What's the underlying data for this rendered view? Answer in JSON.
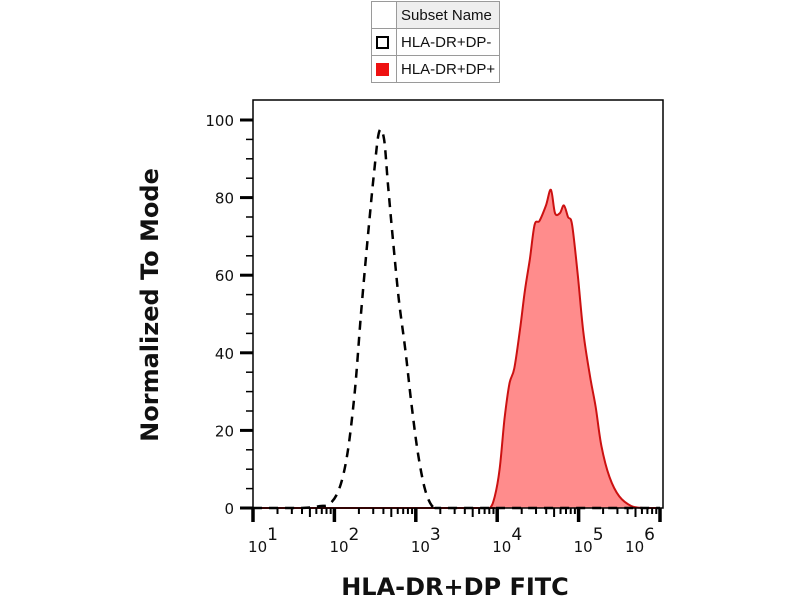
{
  "chart_data": {
    "type": "area",
    "title": "",
    "xlabel": "HLA-DR+DP FITC",
    "ylabel": "Normalized To Mode",
    "x_scale": "log",
    "xlim_log10": [
      1,
      6
    ],
    "ylim": [
      0,
      100
    ],
    "x_ticks": [
      {
        "base": "10",
        "exp": "1",
        "value": 10
      },
      {
        "base": "10",
        "exp": "2",
        "value": 100
      },
      {
        "base": "10",
        "exp": "3",
        "value": 1000
      },
      {
        "base": "10",
        "exp": "4",
        "value": 10000
      },
      {
        "base": "10",
        "exp": "5",
        "value": 100000
      },
      {
        "base": "10",
        "exp": "6",
        "value": 1000000
      }
    ],
    "y_ticks": [
      "0",
      "20",
      "40",
      "60",
      "80",
      "100"
    ],
    "y_tick_values": [
      0,
      20,
      40,
      60,
      80,
      100
    ],
    "grid": false,
    "legend": {
      "placement": "top-center",
      "header": "Subset Name",
      "entries": [
        {
          "label": "HLA-DR+DP-",
          "style": "dashed-outline",
          "color": "#000000"
        },
        {
          "label": "HLA-DR+DP+",
          "style": "filled",
          "color": "#ee1111"
        }
      ]
    },
    "series": [
      {
        "name": "HLA-DR+DP-",
        "style": "dashed",
        "stroke": "#000000",
        "fill": "none",
        "log10_x": [
          1.0,
          1.6,
          1.82,
          1.94,
          2.06,
          2.16,
          2.25,
          2.33,
          2.42,
          2.49,
          2.55,
          2.61,
          2.66,
          2.72,
          2.79,
          2.87,
          2.94,
          3.02,
          3.11,
          3.2,
          3.28,
          3.5,
          6.0
        ],
        "y": [
          0,
          0,
          0.5,
          1,
          5,
          14,
          30,
          51,
          72,
          87,
          97,
          95,
          83,
          69,
          54,
          41,
          28,
          15,
          5,
          0.5,
          0,
          0,
          0
        ]
      },
      {
        "name": "HLA-DR+DP+",
        "style": "filled",
        "stroke": "#cc1111",
        "fill": "#ff8c8c",
        "log10_x": [
          1.0,
          3.8,
          2.0,
          3.91,
          3.97,
          4.03,
          4.09,
          4.15,
          4.21,
          4.28,
          4.34,
          4.4,
          4.46,
          4.52,
          4.6,
          4.66,
          4.71,
          4.77,
          4.82,
          4.87,
          4.92,
          4.99,
          5.06,
          5.14,
          5.21,
          5.28,
          5.38,
          5.5,
          5.65,
          5.81,
          6.0
        ],
        "y": [
          0,
          0,
          0,
          0,
          3,
          10,
          23,
          32,
          36,
          46,
          56,
          64,
          73,
          74,
          78,
          82,
          76,
          76,
          78,
          75,
          73,
          60,
          45,
          34,
          26,
          16,
          8,
          3,
          0.5,
          0,
          0
        ]
      }
    ]
  }
}
